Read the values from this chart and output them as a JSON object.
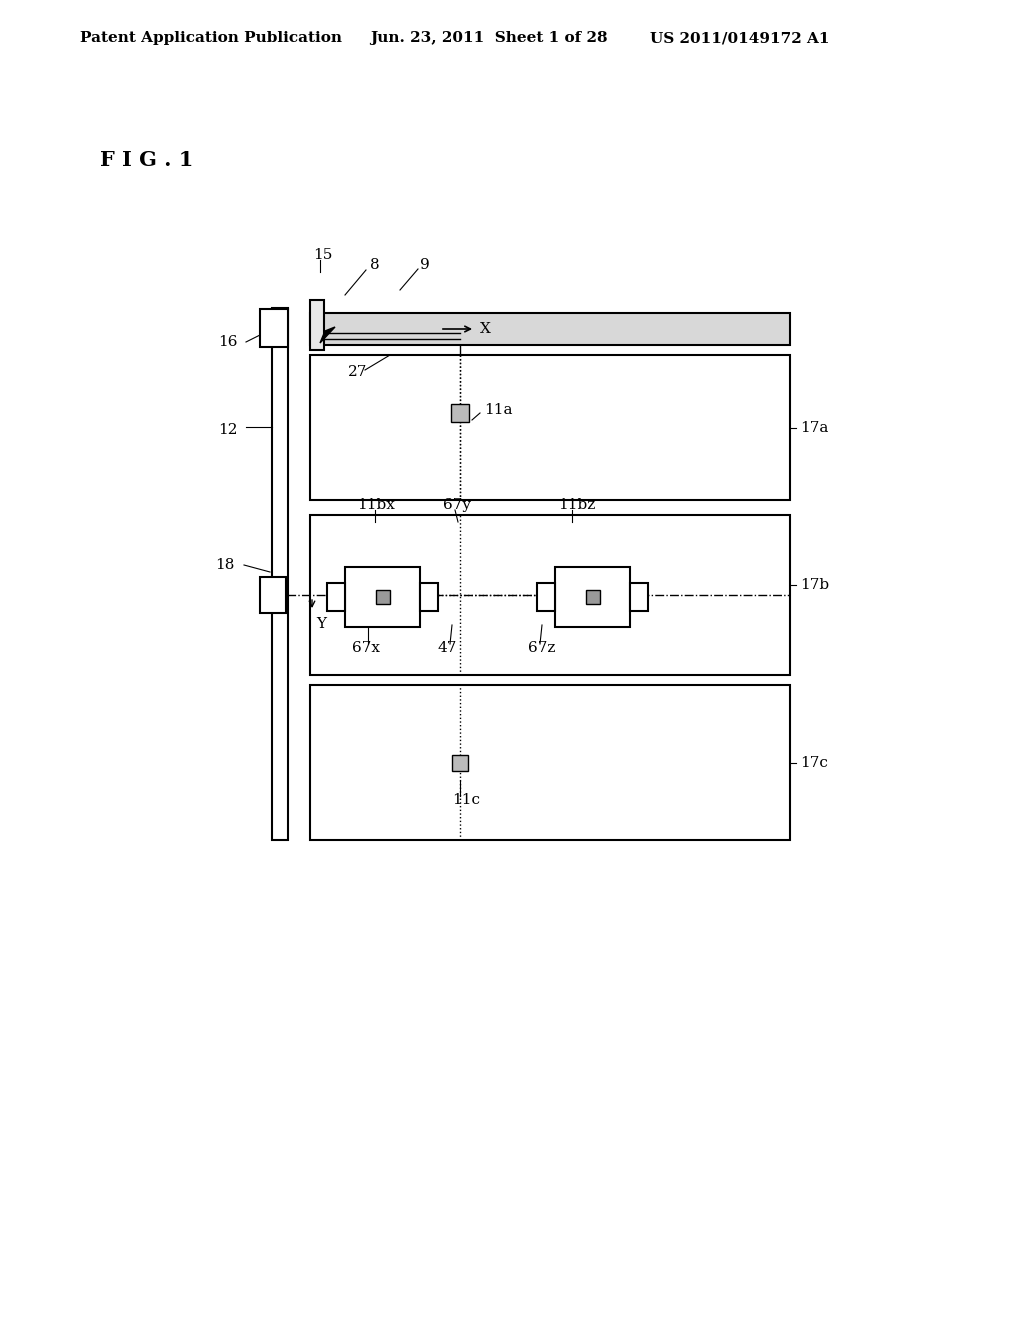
{
  "bg_color": "#ffffff",
  "header_text": "Patent Application Publication",
  "header_date": "Jun. 23, 2011  Sheet 1 of 28",
  "header_patent": "US 2011/0149172 A1",
  "fig_label": "F I G . 1",
  "line_color": "#000000",
  "lw_main": 1.5,
  "lw_thin": 1.0,
  "label_fs": 11,
  "header_fs": 11
}
